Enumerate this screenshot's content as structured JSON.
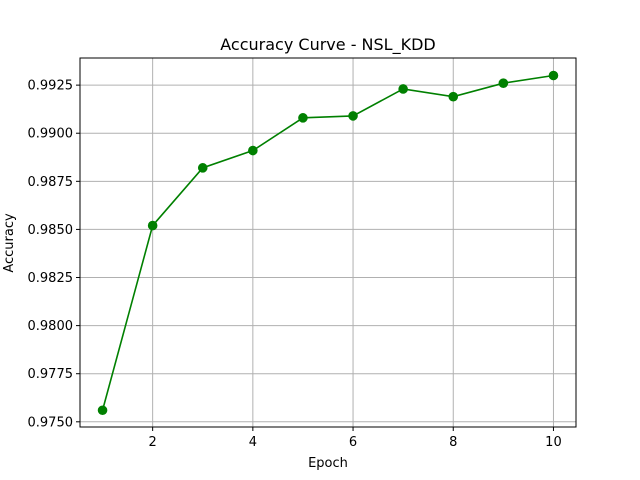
{
  "chart_data": {
    "type": "line",
    "title": "Accuracy Curve - NSL_KDD",
    "xlabel": "Epoch",
    "ylabel": "Accuracy",
    "x": [
      1,
      2,
      3,
      4,
      5,
      6,
      7,
      8,
      9,
      10
    ],
    "series": [
      {
        "name": "",
        "color": "#008000",
        "marker": "circle",
        "values": [
          0.9756,
          0.9852,
          0.9882,
          0.9891,
          0.9908,
          0.9909,
          0.9923,
          0.9919,
          0.9926,
          0.993
        ]
      }
    ],
    "xlim": [
      0.55,
      10.45
    ],
    "ylim": [
      0.97473,
      0.99391
    ],
    "xticks": [
      2,
      4,
      6,
      8,
      10
    ],
    "xtick_labels": [
      "2",
      "4",
      "6",
      "8",
      "10"
    ],
    "yticks": [
      0.975,
      0.9775,
      0.98,
      0.9825,
      0.985,
      0.9875,
      0.99,
      0.9925
    ],
    "ytick_labels": [
      "0.9750",
      "0.9775",
      "0.9800",
      "0.9825",
      "0.9850",
      "0.9875",
      "0.9900",
      "0.9925"
    ],
    "grid": true,
    "grid_color": "#b0b0b0",
    "axis_color": "#000000",
    "legend": "none"
  }
}
